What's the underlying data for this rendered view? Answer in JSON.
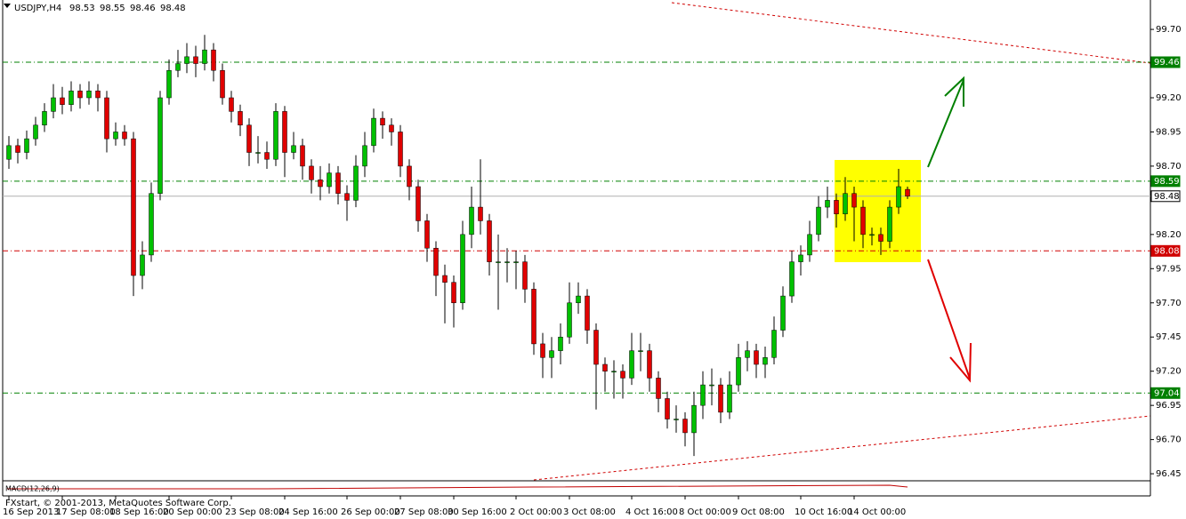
{
  "header": {
    "symbol": "USDJPY,H4"
  },
  "chart_data": {
    "type": "candlestick",
    "ohlc": [
      [
        98.75,
        98.92,
        98.68,
        98.85
      ],
      [
        98.85,
        98.9,
        98.72,
        98.8
      ],
      [
        98.8,
        98.96,
        98.75,
        98.9
      ],
      [
        98.9,
        99.06,
        98.85,
        99.0
      ],
      [
        99.0,
        99.16,
        98.95,
        99.1
      ],
      [
        99.1,
        99.3,
        99.05,
        99.2
      ],
      [
        99.2,
        99.28,
        99.08,
        99.15
      ],
      [
        99.15,
        99.32,
        99.1,
        99.25
      ],
      [
        99.25,
        99.3,
        99.12,
        99.2
      ],
      [
        99.2,
        99.32,
        99.15,
        99.25
      ],
      [
        99.25,
        99.3,
        99.1,
        99.2
      ],
      [
        99.2,
        99.25,
        98.8,
        98.9
      ],
      [
        98.9,
        99.02,
        98.85,
        98.95
      ],
      [
        98.95,
        99.0,
        98.85,
        98.9
      ],
      [
        98.9,
        98.95,
        97.75,
        97.9
      ],
      [
        97.9,
        98.15,
        97.8,
        98.05
      ],
      [
        98.05,
        98.58,
        98.0,
        98.5
      ],
      [
        98.5,
        99.25,
        98.45,
        99.2
      ],
      [
        99.2,
        99.48,
        99.15,
        99.4
      ],
      [
        99.4,
        99.55,
        99.35,
        99.45
      ],
      [
        99.45,
        99.6,
        99.38,
        99.5
      ],
      [
        99.5,
        99.58,
        99.35,
        99.45
      ],
      [
        99.45,
        99.66,
        99.4,
        99.55
      ],
      [
        99.55,
        99.6,
        99.32,
        99.4
      ],
      [
        99.4,
        99.45,
        99.15,
        99.2
      ],
      [
        99.2,
        99.25,
        99.02,
        99.1
      ],
      [
        99.1,
        99.15,
        98.92,
        99.0
      ],
      [
        99.0,
        99.05,
        98.7,
        98.8
      ],
      [
        98.8,
        98.92,
        98.72,
        98.8
      ],
      [
        98.8,
        98.88,
        98.68,
        98.75
      ],
      [
        98.75,
        99.16,
        98.7,
        99.1
      ],
      [
        99.1,
        99.14,
        98.62,
        98.8
      ],
      [
        98.8,
        98.95,
        98.75,
        98.85
      ],
      [
        98.85,
        98.9,
        98.6,
        98.7
      ],
      [
        98.7,
        98.75,
        98.5,
        98.6
      ],
      [
        98.6,
        98.7,
        98.45,
        98.55
      ],
      [
        98.55,
        98.72,
        98.5,
        98.65
      ],
      [
        98.65,
        98.7,
        98.42,
        98.5
      ],
      [
        98.5,
        98.56,
        98.3,
        98.45
      ],
      [
        98.45,
        98.78,
        98.4,
        98.7
      ],
      [
        98.7,
        98.95,
        98.62,
        98.85
      ],
      [
        98.85,
        99.12,
        98.8,
        99.05
      ],
      [
        99.05,
        99.1,
        98.9,
        99.0
      ],
      [
        99.0,
        99.05,
        98.85,
        98.95
      ],
      [
        98.95,
        99.0,
        98.62,
        98.7
      ],
      [
        98.7,
        98.75,
        98.45,
        98.55
      ],
      [
        98.55,
        98.6,
        98.22,
        98.3
      ],
      [
        98.3,
        98.35,
        98.0,
        98.1
      ],
      [
        98.1,
        98.15,
        97.75,
        97.9
      ],
      [
        97.9,
        97.98,
        97.55,
        97.85
      ],
      [
        97.85,
        97.9,
        97.52,
        97.7
      ],
      [
        97.7,
        98.3,
        97.65,
        98.2
      ],
      [
        98.2,
        98.55,
        98.1,
        98.4
      ],
      [
        98.4,
        98.75,
        98.2,
        98.3
      ],
      [
        98.3,
        98.35,
        97.9,
        98.0
      ],
      [
        98.0,
        98.2,
        97.65,
        98.0
      ],
      [
        98.0,
        98.1,
        97.85,
        98.0
      ],
      [
        98.0,
        98.08,
        97.8,
        98.0
      ],
      [
        98.0,
        98.05,
        97.7,
        97.8
      ],
      [
        97.8,
        97.85,
        97.32,
        97.4
      ],
      [
        97.4,
        97.48,
        97.15,
        97.3
      ],
      [
        97.3,
        97.45,
        97.15,
        97.35
      ],
      [
        97.35,
        97.55,
        97.25,
        97.45
      ],
      [
        97.45,
        97.85,
        97.4,
        97.7
      ],
      [
        97.7,
        97.85,
        97.62,
        97.75
      ],
      [
        97.75,
        97.8,
        97.4,
        97.5
      ],
      [
        97.5,
        97.55,
        96.92,
        97.25
      ],
      [
        97.25,
        97.3,
        97.05,
        97.2
      ],
      [
        97.2,
        97.28,
        97.0,
        97.2
      ],
      [
        97.2,
        97.25,
        97.0,
        97.15
      ],
      [
        97.15,
        97.48,
        97.1,
        97.35
      ],
      [
        97.35,
        97.48,
        97.2,
        97.35
      ],
      [
        97.35,
        97.4,
        97.05,
        97.15
      ],
      [
        97.15,
        97.2,
        96.9,
        97.0
      ],
      [
        97.0,
        97.05,
        96.78,
        96.85
      ],
      [
        96.85,
        96.95,
        96.75,
        96.85
      ],
      [
        96.85,
        96.9,
        96.65,
        96.75
      ],
      [
        96.75,
        97.05,
        96.58,
        96.95
      ],
      [
        96.95,
        97.2,
        96.85,
        97.1
      ],
      [
        97.1,
        97.22,
        96.95,
        97.1
      ],
      [
        97.1,
        97.15,
        96.82,
        96.9
      ],
      [
        96.9,
        97.2,
        96.85,
        97.1
      ],
      [
        97.1,
        97.4,
        97.05,
        97.3
      ],
      [
        97.3,
        97.42,
        97.2,
        97.35
      ],
      [
        97.35,
        97.4,
        97.15,
        97.25
      ],
      [
        97.25,
        97.38,
        97.15,
        97.3
      ],
      [
        97.3,
        97.6,
        97.25,
        97.5
      ],
      [
        97.5,
        97.82,
        97.45,
        97.75
      ],
      [
        97.75,
        98.08,
        97.7,
        98.0
      ],
      [
        98.0,
        98.12,
        97.9,
        98.05
      ],
      [
        98.05,
        98.3,
        98.0,
        98.2
      ],
      [
        98.2,
        98.48,
        98.15,
        98.4
      ],
      [
        98.4,
        98.55,
        98.32,
        98.45
      ],
      [
        98.45,
        98.5,
        98.25,
        98.35
      ],
      [
        98.35,
        98.62,
        98.3,
        98.5
      ],
      [
        98.5,
        98.55,
        98.15,
        98.4
      ],
      [
        98.4,
        98.45,
        98.1,
        98.2
      ],
      [
        98.2,
        98.25,
        98.12,
        98.2
      ],
      [
        98.2,
        98.25,
        98.05,
        98.15
      ],
      [
        98.15,
        98.45,
        98.1,
        98.4
      ],
      [
        98.4,
        98.68,
        98.35,
        98.55
      ],
      [
        98.53,
        98.55,
        98.46,
        98.48
      ]
    ],
    "up_color": "#00c000",
    "down_color": "#e00000",
    "ylim": [
      96.405,
      99.915
    ],
    "yticks": [
      {
        "value": 99.7,
        "label": "99.70"
      },
      {
        "value": 99.2,
        "label": "99.20"
      },
      98.95,
      {
        "value": 98.7,
        "label": "98.70"
      },
      {
        "value": 98.2,
        "label": "98.20"
      },
      97.95,
      {
        "value": 97.7,
        "label": "97.70"
      },
      97.45,
      {
        "value": 97.2,
        "label": "97.20"
      },
      96.95,
      {
        "value": 96.7,
        "label": "96.70"
      },
      96.45
    ],
    "levels": [
      {
        "value": 99.46,
        "color": "#008000"
      },
      {
        "value": 98.59,
        "color": "#008000"
      },
      {
        "value": 98.48,
        "color": "#b0b0b0"
      },
      {
        "value": 98.08,
        "color": "#d00000"
      },
      {
        "value": 97.04,
        "color": "#008000"
      }
    ],
    "x_labels": [
      {
        "index": 0,
        "label": "16 Sep 2013"
      },
      {
        "index": 6,
        "label": "17 Sep 08:00"
      },
      {
        "index": 12,
        "label": "18 Sep 16:00"
      },
      {
        "index": 18,
        "label": "20 Sep 00:00"
      },
      {
        "index": 25,
        "label": "23 Sep 08:00"
      },
      {
        "index": 31,
        "label": "24 Sep 16:00"
      },
      {
        "index": 38,
        "label": "26 Sep 00:00"
      },
      {
        "index": 44,
        "label": "27 Sep 08:00"
      },
      {
        "index": 50,
        "label": "30 Sep 16:00"
      },
      {
        "index": 57,
        "label": "2 Oct 00:00"
      },
      {
        "index": 63,
        "label": "3 Oct 08:00"
      },
      {
        "index": 70,
        "label": "4 Oct 16:00"
      },
      {
        "index": 76,
        "label": "8 Oct 00:00"
      },
      {
        "index": 82,
        "label": "9 Oct 08:00"
      },
      {
        "index": 89,
        "label": "10 Oct 16:00"
      },
      {
        "index": 95,
        "label": "14 Oct 00:00"
      }
    ],
    "indicator": "MACD(12,26,9)"
  },
  "footer": "FXstart, © 2001-2013, MetaQuotes Software Corp."
}
